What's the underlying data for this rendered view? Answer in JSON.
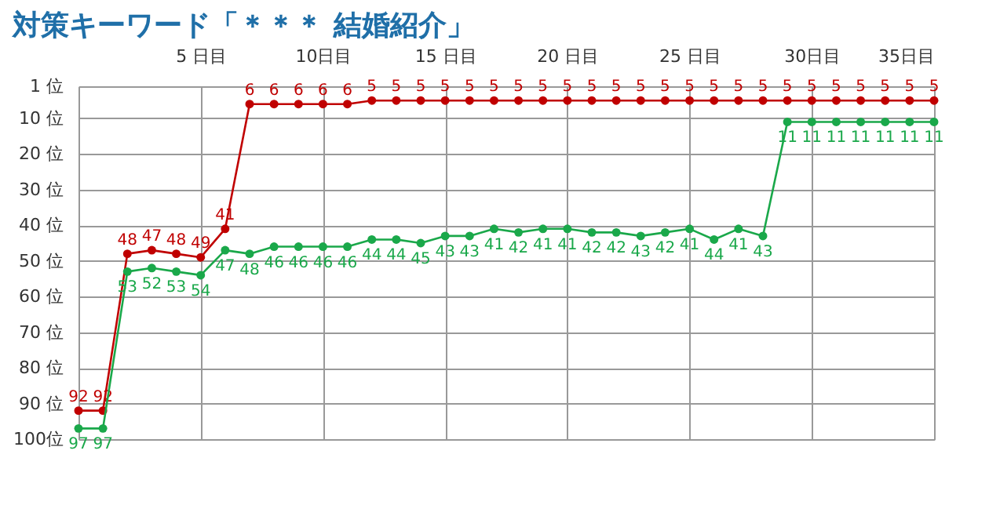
{
  "chart_data": {
    "type": "line",
    "title": "対策キーワード「＊＊＊ 結婚紹介」",
    "x": [
      0,
      1,
      2,
      3,
      4,
      5,
      6,
      7,
      8,
      9,
      10,
      11,
      12,
      13,
      14,
      15,
      16,
      17,
      18,
      19,
      20,
      21,
      22,
      23,
      24,
      25,
      26,
      27,
      28,
      29,
      30,
      31,
      32,
      33,
      34,
      35
    ],
    "series": [
      {
        "color": "#c00000",
        "values": [
          92,
          92,
          48,
          47,
          48,
          49,
          41,
          6,
          6,
          6,
          6,
          6,
          5,
          5,
          5,
          5,
          5,
          5,
          5,
          5,
          5,
          5,
          5,
          5,
          5,
          5,
          5,
          5,
          5,
          5,
          5,
          5,
          5,
          5,
          5,
          5
        ]
      },
      {
        "color": "#1aa84a",
        "values": [
          97,
          97,
          53,
          52,
          53,
          54,
          47,
          48,
          46,
          46,
          46,
          46,
          44,
          44,
          45,
          43,
          43,
          41,
          42,
          41,
          41,
          42,
          42,
          43,
          42,
          41,
          44,
          41,
          43,
          11,
          11,
          11,
          11,
          11,
          11,
          11
        ]
      }
    ],
    "xlim": [
      0,
      35
    ],
    "xticks": [
      {
        "value": 5,
        "label": "5 日目"
      },
      {
        "value": 10,
        "label": "10日目"
      },
      {
        "value": 15,
        "label": "15 日目"
      },
      {
        "value": 20,
        "label": "20 日目"
      },
      {
        "value": 25,
        "label": "25 日目"
      },
      {
        "value": 30,
        "label": "30日目"
      },
      {
        "value": 35,
        "label": "35日目"
      }
    ],
    "ylim": [
      100,
      1
    ],
    "yticks": [
      {
        "value": 1,
        "label": "1 位"
      },
      {
        "value": 10,
        "label": "10 位"
      },
      {
        "value": 20,
        "label": "20 位"
      },
      {
        "value": 30,
        "label": "30 位"
      },
      {
        "value": 40,
        "label": "40 位"
      },
      {
        "value": 50,
        "label": "50 位"
      },
      {
        "value": 60,
        "label": "60 位"
      },
      {
        "value": 70,
        "label": "70 位"
      },
      {
        "value": 80,
        "label": "80 位"
      },
      {
        "value": 90,
        "label": "90 位"
      },
      {
        "value": 100,
        "label": "100位"
      }
    ],
    "grid": true,
    "marker": "circle",
    "line_style": "solid",
    "data_labels": true
  }
}
